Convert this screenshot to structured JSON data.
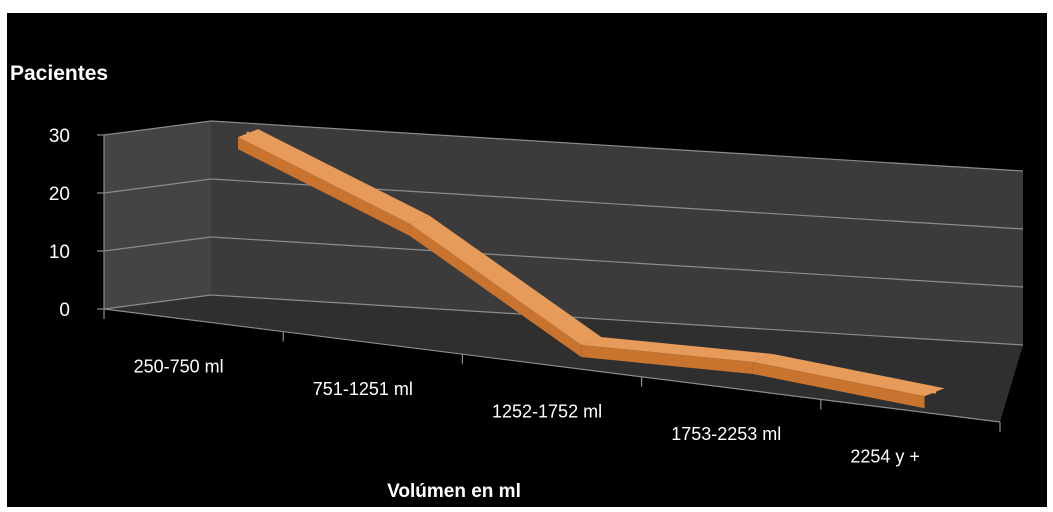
{
  "chart_data": {
    "type": "line",
    "style": "3d-ribbon",
    "categories": [
      "250-750 ml",
      "751-1251 ml",
      "1252-1752 ml",
      "1753-2253 ml",
      "2254 y +"
    ],
    "values": [
      30,
      18,
      0,
      0,
      -3
    ],
    "title": "",
    "xlabel": "Volúmen  en  ml",
    "ylabel": "Pacientes",
    "y_ticks": [
      "0",
      "10",
      "20",
      "30"
    ],
    "ylim": [
      0,
      30
    ],
    "grid": true,
    "legend": "none"
  },
  "colors": {
    "background": "#000000",
    "wall": "#3b3b3b",
    "floor": "#2f2f2f",
    "gridline": "#8c8c8c",
    "ribbon_top": "#e69b5a",
    "ribbon_front": "#c9742e",
    "text": "#ffffff"
  }
}
